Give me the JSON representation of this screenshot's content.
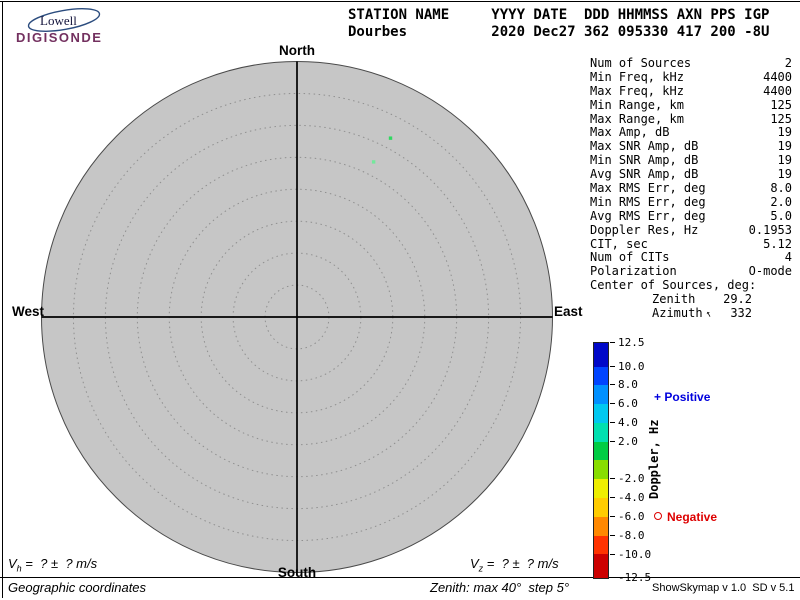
{
  "logo": {
    "line1": "Lowell",
    "line2": "DIGISONDE",
    "swoosh_color": "#2b4c7e",
    "wordmark_color": "#73305f"
  },
  "header": {
    "line1": "STATION NAME     YYYY DATE  DDD HHMMSS AXN PPS IGP",
    "line2": "Dourbes          2020 Dec27 362 095330 417 200 -8U"
  },
  "params": {
    "rows": [
      {
        "label": "Num of Sources",
        "value": "2",
        "indent": false
      },
      {
        "label": "Min Freq, kHz",
        "value": "4400",
        "indent": false
      },
      {
        "label": "Max Freq, kHz",
        "value": "4400",
        "indent": false
      },
      {
        "label": "Min Range, km",
        "value": "125",
        "indent": false
      },
      {
        "label": "Max Range, km",
        "value": "125",
        "indent": false
      },
      {
        "label": "Max Amp, dB",
        "value": "19",
        "indent": false
      },
      {
        "label": "Max SNR Amp, dB",
        "value": "19",
        "indent": false
      },
      {
        "label": "Min SNR Amp, dB",
        "value": "19",
        "indent": false
      },
      {
        "label": "Avg SNR Amp, dB",
        "value": "19",
        "indent": false
      },
      {
        "label": "Max RMS Err, deg",
        "value": "8.0",
        "indent": false
      },
      {
        "label": "Min RMS Err, deg",
        "value": "2.0",
        "indent": false
      },
      {
        "label": "Avg RMS Err, deg",
        "value": "5.0",
        "indent": false
      },
      {
        "label": "Doppler Res, Hz",
        "value": "0.1953",
        "indent": false
      },
      {
        "label": "CIT, sec",
        "value": "5.12",
        "indent": false
      },
      {
        "label": "Num of CITs",
        "value": "4",
        "indent": false
      },
      {
        "label": "Polarization",
        "value": "O-mode",
        "indent": false
      },
      {
        "label": "Center of Sources, deg:",
        "value": "",
        "indent": false
      },
      {
        "label": "Zenith",
        "value": "29.2",
        "indent": true
      },
      {
        "label": "Azimuth",
        "value": "332",
        "indent": true,
        "arrow_deg": 332
      }
    ]
  },
  "legend": {
    "positive_symbol": "+",
    "positive_label": "Positive",
    "negative_label": "Negative",
    "positive_color": "#0000dd",
    "negative_color": "#dd0000"
  },
  "footer": {
    "vh": {
      "base": "V",
      "sub": "h",
      "rest": " =  ? ±  ? m/s"
    },
    "vz": {
      "base": "V",
      "sub": "z",
      "rest": " =  ? ±  ? m/s"
    },
    "coords_note": "Geographic coordinates",
    "zenith_note": "Zenith: max 40°  step 5°",
    "version": "ShowSkymap v 1.0  SD v 5.1"
  },
  "chart_data": {
    "type": "scatter",
    "title": "Digisonde skymap of ionospheric sources",
    "projection": "polar",
    "zenith_max_deg": 40,
    "zenith_step_deg": 5,
    "rings_total": 8,
    "compass": {
      "top": "North",
      "right": "East",
      "bottom": "South",
      "left": "West"
    },
    "style": {
      "fill": "#c6c6c6",
      "ring": "#8f8f8f",
      "edge": "#4a4a4a"
    },
    "points": [
      {
        "dx": 0.366,
        "dy": -0.7,
        "color": "#30d860",
        "doppler_sign": "positive"
      },
      {
        "dx": 0.3,
        "dy": -0.607,
        "color": "#74e89c",
        "doppler_sign": "positive"
      }
    ],
    "colorbar": {
      "label": "Doppler, Hz",
      "min": -12.5,
      "max": 12.5,
      "ticks": [
        {
          "v": 12.5,
          "label": "12.5"
        },
        {
          "v": 10,
          "label": "10.0"
        },
        {
          "v": 8,
          "label": "8.0"
        },
        {
          "v": 6,
          "label": "6.0"
        },
        {
          "v": 4,
          "label": "4.0"
        },
        {
          "v": 2,
          "label": "2.0"
        },
        {
          "v": -2,
          "label": "-2.0"
        },
        {
          "v": -4,
          "label": "-4.0"
        },
        {
          "v": -6,
          "label": "-6.0"
        },
        {
          "v": -8,
          "label": "-8.0"
        },
        {
          "v": -10,
          "label": "-10.0"
        },
        {
          "v": -12.5,
          "label": "-12.5"
        }
      ],
      "segments": [
        {
          "from": 12.5,
          "to": 10,
          "color": "#0008c8"
        },
        {
          "from": 10,
          "to": 8,
          "color": "#0044ff"
        },
        {
          "from": 8,
          "to": 6,
          "color": "#0090ff"
        },
        {
          "from": 6,
          "to": 4,
          "color": "#00c8f0"
        },
        {
          "from": 4,
          "to": 2,
          "color": "#00e0b0"
        },
        {
          "from": 2,
          "to": 0,
          "color": "#00cc44"
        },
        {
          "from": 0,
          "to": -2,
          "color": "#88dd00"
        },
        {
          "from": -2,
          "to": -4,
          "color": "#eeee00"
        },
        {
          "from": -4,
          "to": -6,
          "color": "#ffcc00"
        },
        {
          "from": -6,
          "to": -8,
          "color": "#ff8800"
        },
        {
          "from": -8,
          "to": -10,
          "color": "#ff3300"
        },
        {
          "from": -10,
          "to": -12.5,
          "color": "#cc0000"
        }
      ]
    }
  }
}
